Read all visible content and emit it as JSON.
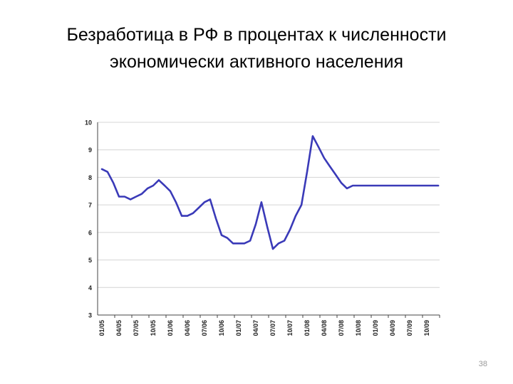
{
  "slide": {
    "title_line1": "Безработица в РФ в процентах к численности",
    "title_line2": "экономически активного населения",
    "page_number": "38"
  },
  "chart_data": {
    "type": "line",
    "title": "",
    "xlabel": "",
    "ylabel": "",
    "ylim": [
      3,
      10
    ],
    "yticks": [
      3,
      4,
      5,
      6,
      7,
      8,
      9,
      10
    ],
    "grid": true,
    "line_color": "#3a3ab8",
    "x_tick_labels": [
      "01/05",
      "04/05",
      "07/05",
      "10/05",
      "01/06",
      "04/06",
      "07/06",
      "10/06",
      "01/07",
      "04/07",
      "07/07",
      "10/07",
      "01/08",
      "04/08",
      "07/08",
      "10/08",
      "01/09",
      "04/09",
      "07/09",
      "10/09"
    ],
    "series": [
      {
        "name": "",
        "x": [
          0,
          0.33,
          0.67,
          1,
          1.33,
          1.67,
          2,
          2.33,
          2.67,
          3,
          3.33,
          3.67,
          4,
          4.33,
          4.67,
          5,
          5.33,
          5.67,
          6,
          6.33,
          6.67,
          7,
          7.33,
          7.67,
          8,
          8.33,
          8.67,
          9,
          9.33,
          9.67,
          10,
          10.33,
          10.67,
          11,
          11.33,
          11.67,
          12,
          12.33,
          12.67,
          13,
          13.33,
          13.67,
          14,
          14.33,
          14.67,
          15,
          15.33,
          15.67,
          16,
          16.33,
          16.67,
          17,
          17.33,
          17.67,
          18,
          18.33,
          18.67,
          19,
          19.33,
          19.67
        ],
        "values": [
          8.3,
          8.2,
          7.8,
          7.3,
          7.3,
          7.2,
          7.3,
          7.4,
          7.6,
          7.7,
          7.9,
          7.7,
          7.5,
          7.1,
          6.6,
          6.6,
          6.7,
          6.9,
          7.1,
          7.2,
          6.5,
          5.9,
          5.8,
          5.6,
          5.6,
          5.6,
          5.7,
          6.3,
          7.1,
          6.2,
          5.4,
          5.6,
          5.7,
          6.1,
          6.6,
          7.0,
          8.2,
          9.5,
          9.1,
          8.7,
          8.4,
          8.1,
          7.8,
          7.6,
          7.7,
          7.7,
          7.7,
          7.7,
          7.7,
          7.7,
          7.7,
          7.7,
          7.7,
          7.7,
          7.7,
          7.7,
          7.7,
          7.7,
          7.7,
          7.7
        ]
      }
    ]
  }
}
